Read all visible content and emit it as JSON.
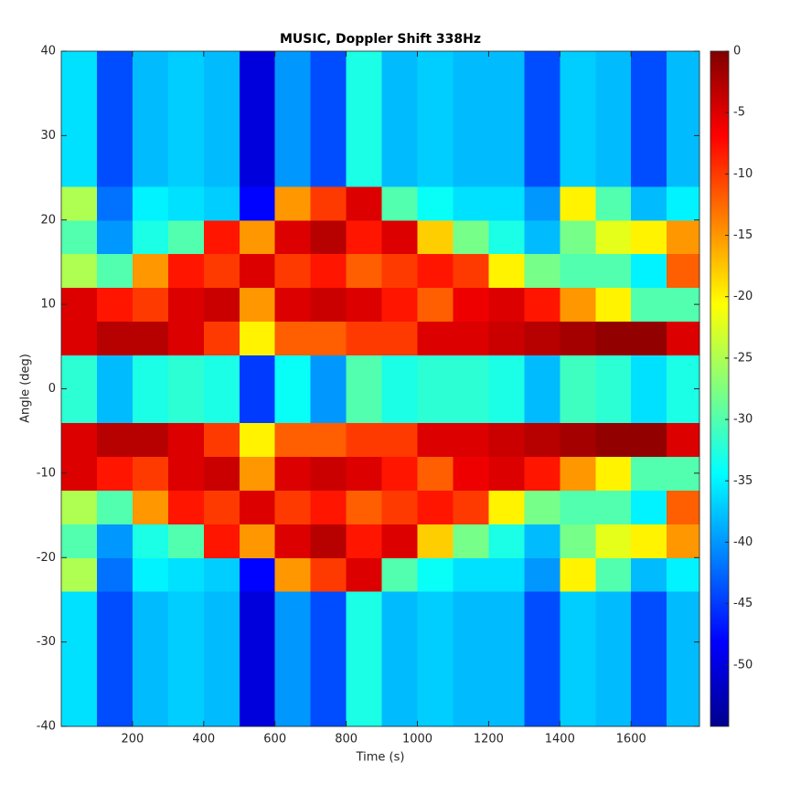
{
  "chart_data": {
    "type": "heatmap",
    "title": "MUSIC, Doppler Shift 338Hz",
    "xlabel": "Time (s)",
    "ylabel": "Angle (deg)",
    "colormap": "jet",
    "xbins": [
      0,
      100,
      200,
      300,
      400,
      500,
      600,
      700,
      800,
      900,
      1000,
      1100,
      1200,
      1300,
      1400,
      1500,
      1600,
      1700,
      1792
    ],
    "ybins": [
      -40,
      -36,
      -32,
      -28,
      -24,
      -20,
      -16,
      -12,
      -8,
      -4,
      0,
      4,
      8,
      12,
      16,
      20,
      24,
      28,
      32,
      36,
      40
    ],
    "values": [
      [
        -36,
        -44,
        -38,
        -37,
        -38,
        -50,
        -40,
        -44,
        -33,
        -38,
        -37,
        -38,
        -38,
        -44,
        -37,
        -38,
        -44,
        -38
      ],
      [
        -36,
        -44,
        -38,
        -37,
        -38,
        -50,
        -40,
        -44,
        -33,
        -38,
        -37,
        -38,
        -38,
        -44,
        -37,
        -38,
        -44,
        -38
      ],
      [
        -36,
        -44,
        -38,
        -37,
        -38,
        -50,
        -40,
        -44,
        -33,
        -38,
        -37,
        -38,
        -38,
        -44,
        -37,
        -38,
        -44,
        -38
      ],
      [
        -36,
        -44,
        -38,
        -37,
        -38,
        -50,
        -40,
        -44,
        -33,
        -38,
        -37,
        -38,
        -38,
        -44,
        -37,
        -38,
        -44,
        -38
      ],
      [
        -25,
        -42,
        -35,
        -36,
        -37,
        -48,
        -15,
        -10,
        -5,
        -30,
        -34,
        -36,
        -36,
        -40,
        -20,
        -30,
        -38,
        -35
      ],
      [
        -30,
        -40,
        -33,
        -30,
        -8,
        -15,
        -5,
        -3,
        -8,
        -5,
        -18,
        -28,
        -33,
        -38,
        -28,
        -22,
        -20,
        -15
      ],
      [
        -25,
        -30,
        -15,
        -8,
        -10,
        -5,
        -10,
        -8,
        -12,
        -10,
        -8,
        -10,
        -20,
        -28,
        -30,
        -30,
        -35,
        -12
      ],
      [
        -5,
        -8,
        -10,
        -5,
        -4,
        -15,
        -5,
        -4,
        -5,
        -8,
        -12,
        -6,
        -5,
        -8,
        -15,
        -20,
        -30,
        -30
      ],
      [
        -5,
        -3,
        -3,
        -5,
        -10,
        -20,
        -12,
        -12,
        -10,
        -10,
        -5,
        -5,
        -4,
        -3,
        -2,
        -1,
        -1,
        -5
      ],
      [
        -32,
        -38,
        -33,
        -32,
        -33,
        -45,
        -34,
        -40,
        -30,
        -33,
        -32,
        -32,
        -33,
        -38,
        -31,
        -32,
        -36,
        -33
      ],
      [
        -32,
        -38,
        -33,
        -32,
        -33,
        -45,
        -34,
        -40,
        -30,
        -33,
        -32,
        -32,
        -33,
        -38,
        -31,
        -32,
        -36,
        -33
      ],
      [
        -5,
        -3,
        -3,
        -5,
        -10,
        -20,
        -12,
        -12,
        -10,
        -10,
        -5,
        -5,
        -4,
        -3,
        -2,
        -1,
        -1,
        -5
      ],
      [
        -5,
        -8,
        -10,
        -5,
        -4,
        -15,
        -5,
        -4,
        -5,
        -8,
        -12,
        -6,
        -5,
        -8,
        -15,
        -20,
        -30,
        -30
      ],
      [
        -25,
        -30,
        -15,
        -8,
        -10,
        -5,
        -10,
        -8,
        -12,
        -10,
        -8,
        -10,
        -20,
        -28,
        -30,
        -30,
        -35,
        -12
      ],
      [
        -30,
        -40,
        -33,
        -30,
        -8,
        -15,
        -5,
        -3,
        -8,
        -5,
        -18,
        -28,
        -33,
        -38,
        -28,
        -22,
        -20,
        -15
      ],
      [
        -25,
        -42,
        -35,
        -36,
        -37,
        -48,
        -15,
        -10,
        -5,
        -30,
        -34,
        -36,
        -36,
        -40,
        -20,
        -30,
        -38,
        -35
      ],
      [
        -36,
        -44,
        -38,
        -37,
        -38,
        -50,
        -40,
        -44,
        -33,
        -38,
        -37,
        -38,
        -38,
        -44,
        -37,
        -38,
        -44,
        -38
      ],
      [
        -36,
        -44,
        -38,
        -37,
        -38,
        -50,
        -40,
        -44,
        -33,
        -38,
        -37,
        -38,
        -38,
        -44,
        -37,
        -38,
        -44,
        -38
      ],
      [
        -36,
        -44,
        -38,
        -37,
        -38,
        -50,
        -40,
        -44,
        -33,
        -38,
        -37,
        -38,
        -38,
        -44,
        -37,
        -38,
        -44,
        -38
      ],
      [
        -36,
        -44,
        -38,
        -37,
        -38,
        -50,
        -40,
        -44,
        -33,
        -38,
        -37,
        -38,
        -38,
        -44,
        -37,
        -38,
        -44,
        -38
      ]
    ],
    "xlim": [
      0,
      1792
    ],
    "ylim": [
      -40,
      40
    ],
    "xticks": [
      200,
      400,
      600,
      800,
      1000,
      1200,
      1400,
      1600
    ],
    "yticks": [
      -40,
      -30,
      -20,
      -10,
      0,
      10,
      20,
      30,
      40
    ],
    "clim": [
      -55,
      0
    ],
    "cticks": [
      0,
      -5,
      -10,
      -15,
      -20,
      -25,
      -30,
      -35,
      -40,
      -45,
      -50
    ]
  }
}
